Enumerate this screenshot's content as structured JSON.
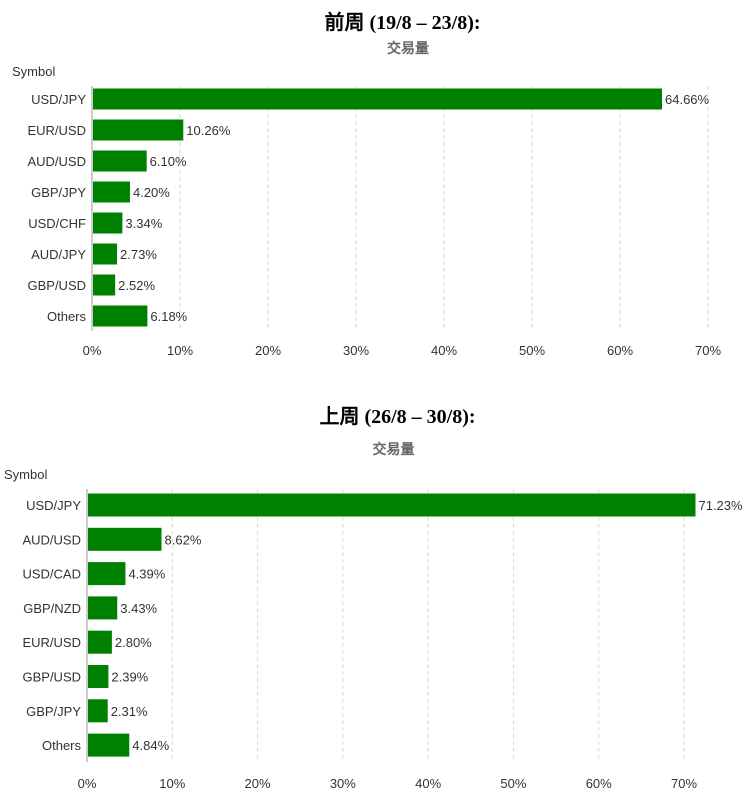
{
  "colors": {
    "bar": "#008000",
    "grid": "#d9d9d9"
  },
  "chart_data": [
    {
      "type": "bar",
      "orientation": "horizontal",
      "heading": "前周 (19/8 – 23/8):",
      "title": "交易量",
      "ylabel": "Symbol",
      "categories": [
        "USD/JPY",
        "EUR/USD",
        "AUD/USD",
        "GBP/JPY",
        "USD/CHF",
        "AUD/JPY",
        "GBP/USD",
        "Others"
      ],
      "values": [
        64.66,
        10.26,
        6.1,
        4.2,
        3.34,
        2.73,
        2.52,
        6.18
      ],
      "data_labels": [
        "64.66%",
        "10.26%",
        "6.10%",
        "4.20%",
        "3.34%",
        "2.73%",
        "2.52%",
        "6.18%"
      ],
      "xlim": [
        0,
        70
      ],
      "xticks": [
        0,
        10,
        20,
        30,
        40,
        50,
        60,
        70
      ],
      "xtick_labels": [
        "0%",
        "10%",
        "20%",
        "30%",
        "40%",
        "50%",
        "60%",
        "70%"
      ],
      "grid": true
    },
    {
      "type": "bar",
      "orientation": "horizontal",
      "heading": "上周 (26/8 – 30/8):",
      "title": "交易量",
      "ylabel": "Symbol",
      "categories": [
        "USD/JPY",
        "AUD/USD",
        "USD/CAD",
        "GBP/NZD",
        "EUR/USD",
        "GBP/USD",
        "GBP/JPY",
        "Others"
      ],
      "values": [
        71.23,
        8.62,
        4.39,
        3.43,
        2.8,
        2.39,
        2.31,
        4.84
      ],
      "data_labels": [
        "71.23%",
        "8.62%",
        "4.39%",
        "3.43%",
        "2.80%",
        "2.39%",
        "2.31%",
        "4.84%"
      ],
      "xlim": [
        0,
        70
      ],
      "xticks": [
        0,
        10,
        20,
        30,
        40,
        50,
        60,
        70
      ],
      "xtick_labels": [
        "0%",
        "10%",
        "20%",
        "30%",
        "40%",
        "50%",
        "60%",
        "70%"
      ],
      "grid": true
    }
  ]
}
